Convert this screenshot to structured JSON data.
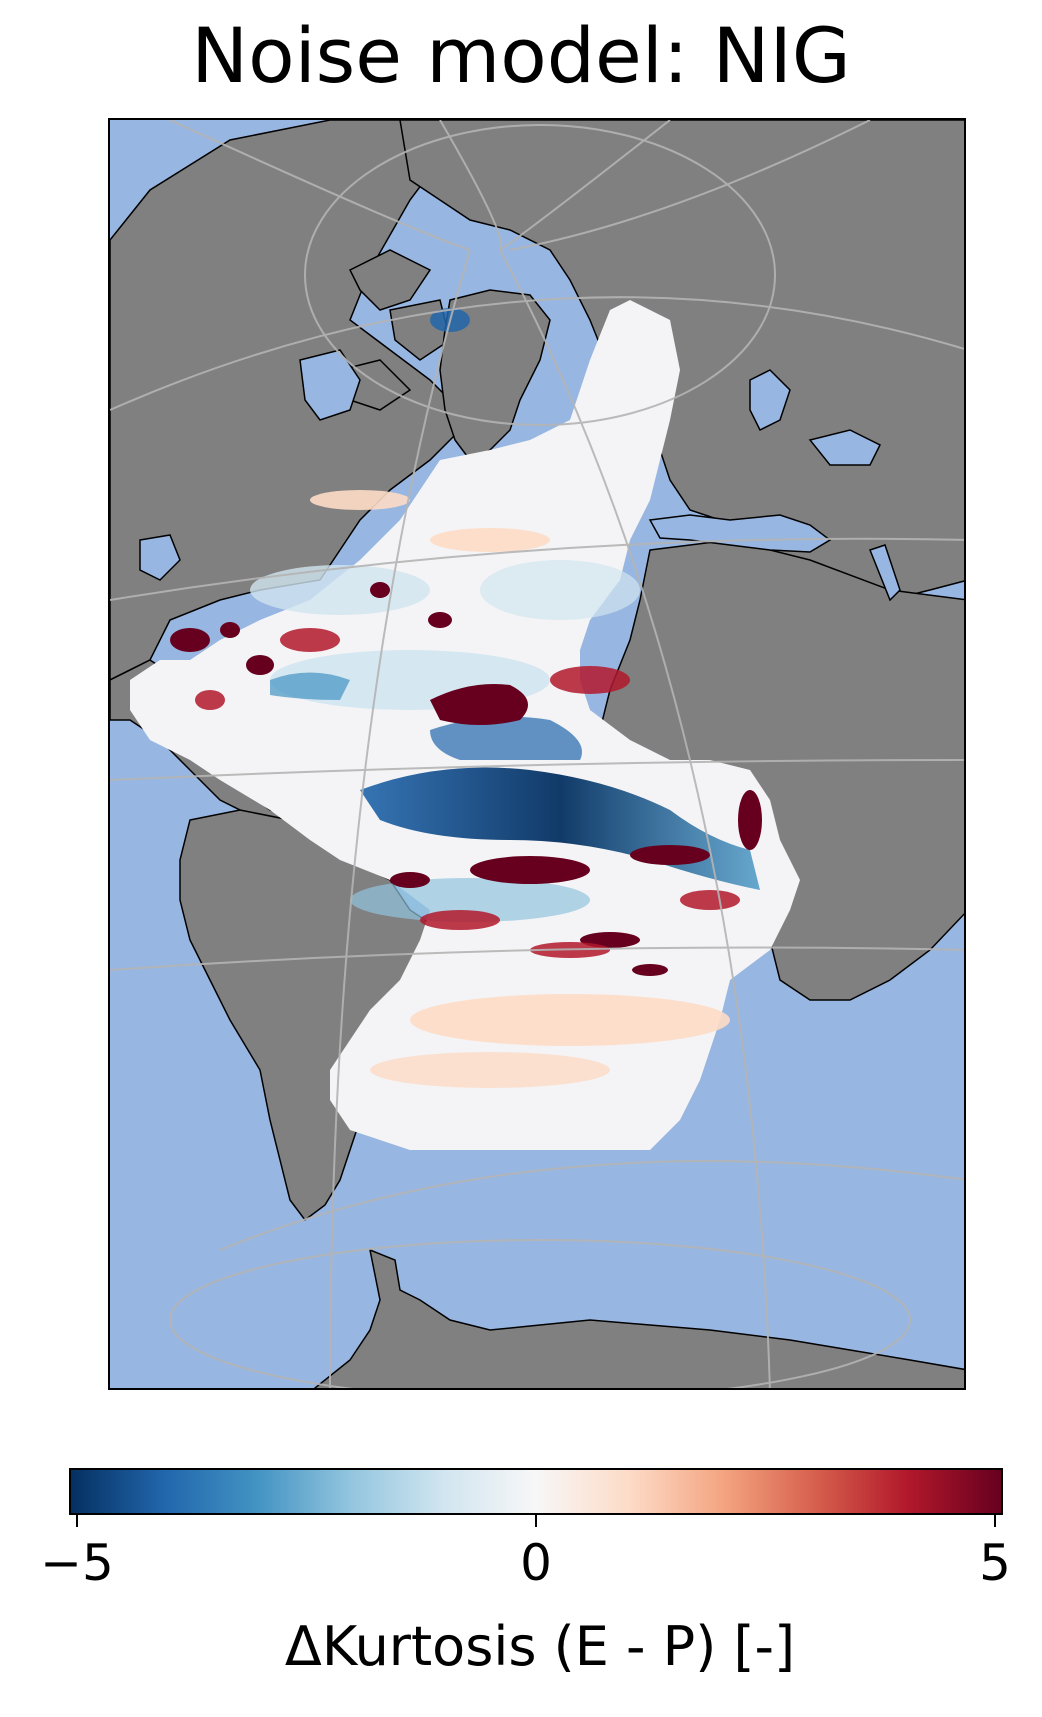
{
  "title": "Noise model: NIG",
  "map": {
    "projection": "orthographic-like view of the Atlantic Ocean",
    "colors": {
      "ocean": "#97b6e1",
      "land": "#808080",
      "coastline": "#000000",
      "gridlines": "#b4b4b4"
    }
  },
  "colorbar": {
    "label": "ΔKurtosis (E - P) [-]",
    "cmap": "RdBu_r",
    "vmin": -5,
    "vmax": 5,
    "ticks": [
      "−5",
      "0",
      "5"
    ],
    "stops": [
      "#053061",
      "#2166ac",
      "#4393c3",
      "#92c5de",
      "#d1e5f0",
      "#f7f7f7",
      "#fddbc7",
      "#f4a582",
      "#d6604d",
      "#b2182b",
      "#67001f"
    ]
  }
}
